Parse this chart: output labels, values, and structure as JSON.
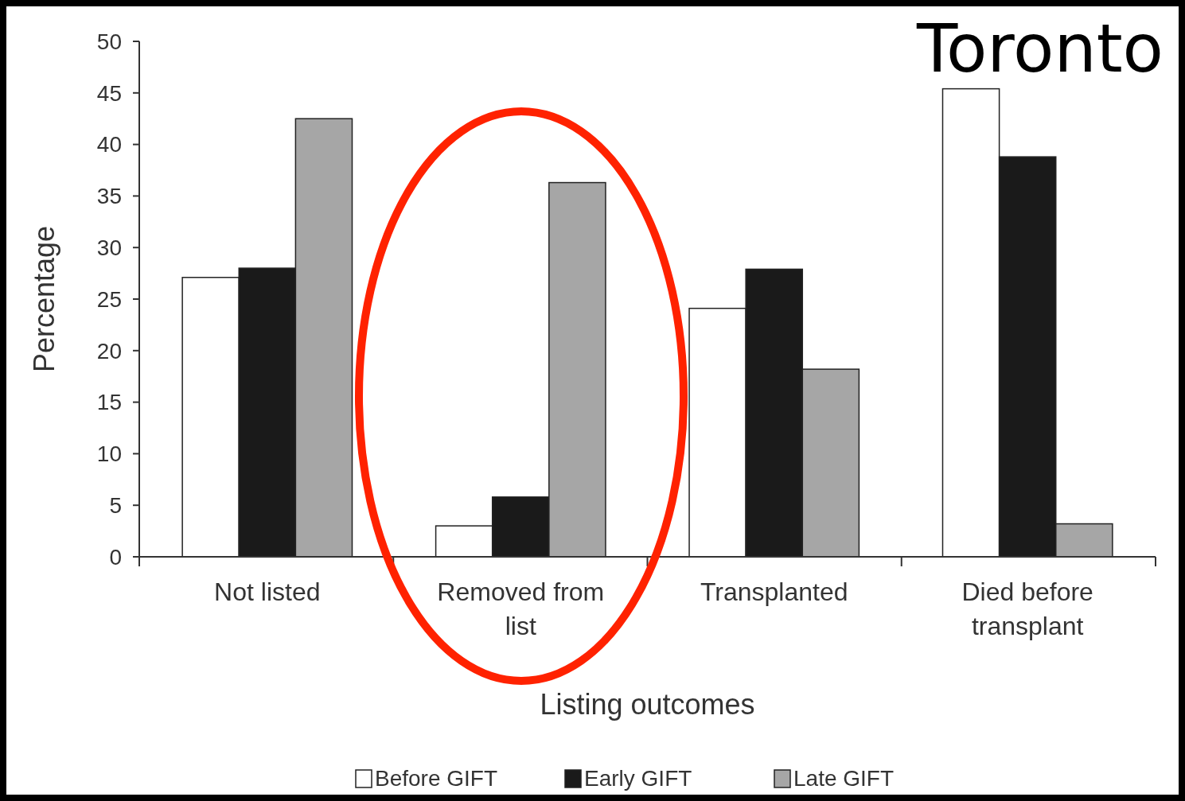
{
  "chart_data": {
    "type": "bar",
    "title": "Toronto",
    "xlabel": "Listing outcomes",
    "ylabel": "Percentage",
    "categories": [
      "Not listed",
      "Removed from list",
      "Transplanted",
      "Died before transplant"
    ],
    "series": [
      {
        "name": "Before GIFT",
        "color": "#ffffff",
        "values": [
          27.1,
          3.0,
          24.1,
          45.4
        ]
      },
      {
        "name": "Early GIFT",
        "color": "#1a1a1a",
        "values": [
          28,
          5.8,
          27.9,
          38.8
        ]
      },
      {
        "name": "Late GIFT",
        "color": "#a6a6a6",
        "values": [
          42.5,
          36.3,
          18.2,
          3.2
        ]
      }
    ],
    "ylim": [
      0,
      50
    ],
    "yticks": [
      0,
      5,
      10,
      15,
      20,
      25,
      30,
      35,
      40,
      45,
      50
    ],
    "grid": false,
    "legend": "bottom"
  }
}
